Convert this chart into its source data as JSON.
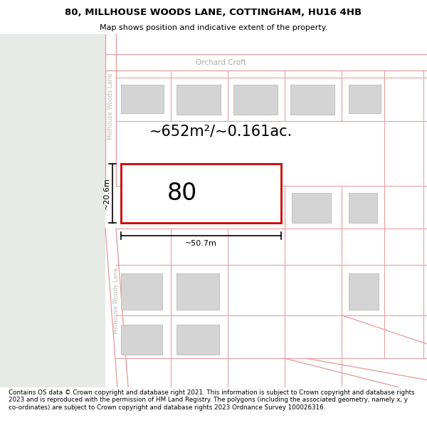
{
  "title": "80, MILLHOUSE WOODS LANE, COTTINGHAM, HU16 4HB",
  "subtitle": "Map shows position and indicative extent of the property.",
  "footer": "Contains OS data © Crown copyright and database right 2021. This information is subject to Crown copyright and database rights 2023 and is reproduced with the permission of HM Land Registry. The polygons (including the associated geometry, namely x, y co-ordinates) are subject to Crown copyright and database rights 2023 Ordnance Survey 100026316.",
  "map_bg": "#f2f2f0",
  "map_bg_left": "#e6ebe6",
  "road_line_color": "#e8a0a0",
  "building_fill": "#d4d4d4",
  "building_edge": "#c0c0c0",
  "main_plot_fill": "#ffffff",
  "main_plot_edge": "#cc0000",
  "area_text": "~652m²/~0.161ac.",
  "number_text": "80",
  "dim_width": "~50.7m",
  "dim_height": "~20.6m",
  "street_label_top": "Millhouse Woods Lane",
  "street_label_bottom": "Millhouse Woods Lane",
  "road_label_orchard": "Orchard Croft"
}
